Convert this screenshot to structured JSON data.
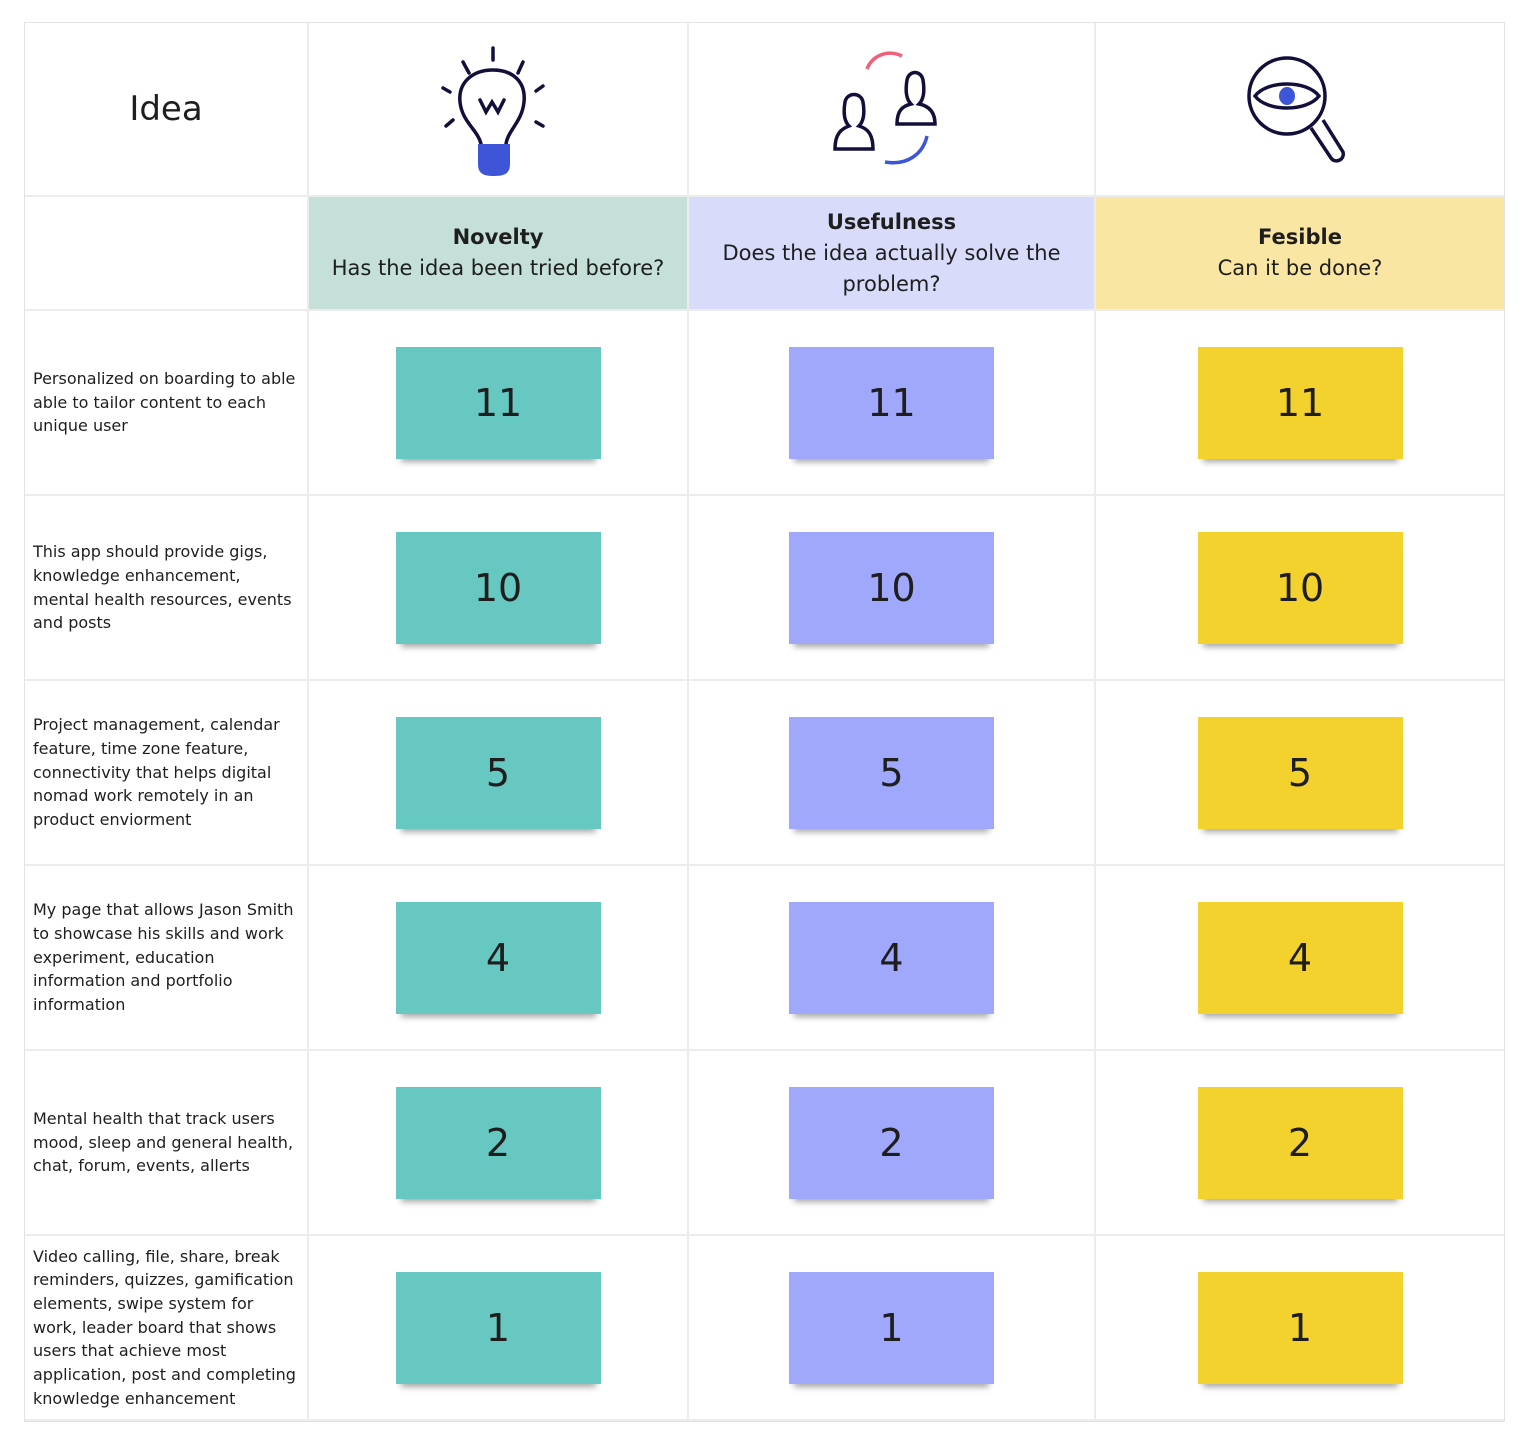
{
  "header": {
    "idea_label": "Idea",
    "columns": [
      {
        "title": "Novelty",
        "question": "Has the idea been tried before?",
        "icon": "lightbulb-icon",
        "header_color": "#c4e0d9",
        "note_color": "#67c8c2"
      },
      {
        "title": "Usefulness",
        "question": "Does the idea actually solve the problem?",
        "icon": "users-exchange-icon",
        "header_color": "#d8dcfa",
        "note_color": "#a0a8fb"
      },
      {
        "title": "Fesible",
        "question": "Can it be done?",
        "icon": "magnifier-eye-icon",
        "header_color": "#f9e6a2",
        "note_color": "#f4d22e"
      }
    ]
  },
  "rows": [
    {
      "idea": "Personalized on boarding to able able to tailor content to each unique user",
      "scores": [
        "11",
        "11",
        "11"
      ]
    },
    {
      "idea": "This app should provide gigs, knowledge enhancement, mental health resources, events and posts",
      "scores": [
        "10",
        "10",
        "10"
      ]
    },
    {
      "idea": "Project management, calendar feature, time zone feature, connectivity that helps digital nomad work remotely in an product enviorment",
      "scores": [
        "5",
        "5",
        "5"
      ]
    },
    {
      "idea": "My page that allows Jason Smith to showcase his skills and work experiment, education information and portfolio information",
      "scores": [
        "4",
        "4",
        "4"
      ]
    },
    {
      "idea": "Mental health that track users mood, sleep and general health, chat, forum, events, allerts",
      "scores": [
        "2",
        "2",
        "2"
      ]
    },
    {
      "idea": "Video calling, file, share, break reminders, quizzes, gamification elements, swipe system for work, leader board that shows users that achieve most application, post and completing knowledge enhancement",
      "scores": [
        "1",
        "1",
        "1"
      ]
    }
  ]
}
